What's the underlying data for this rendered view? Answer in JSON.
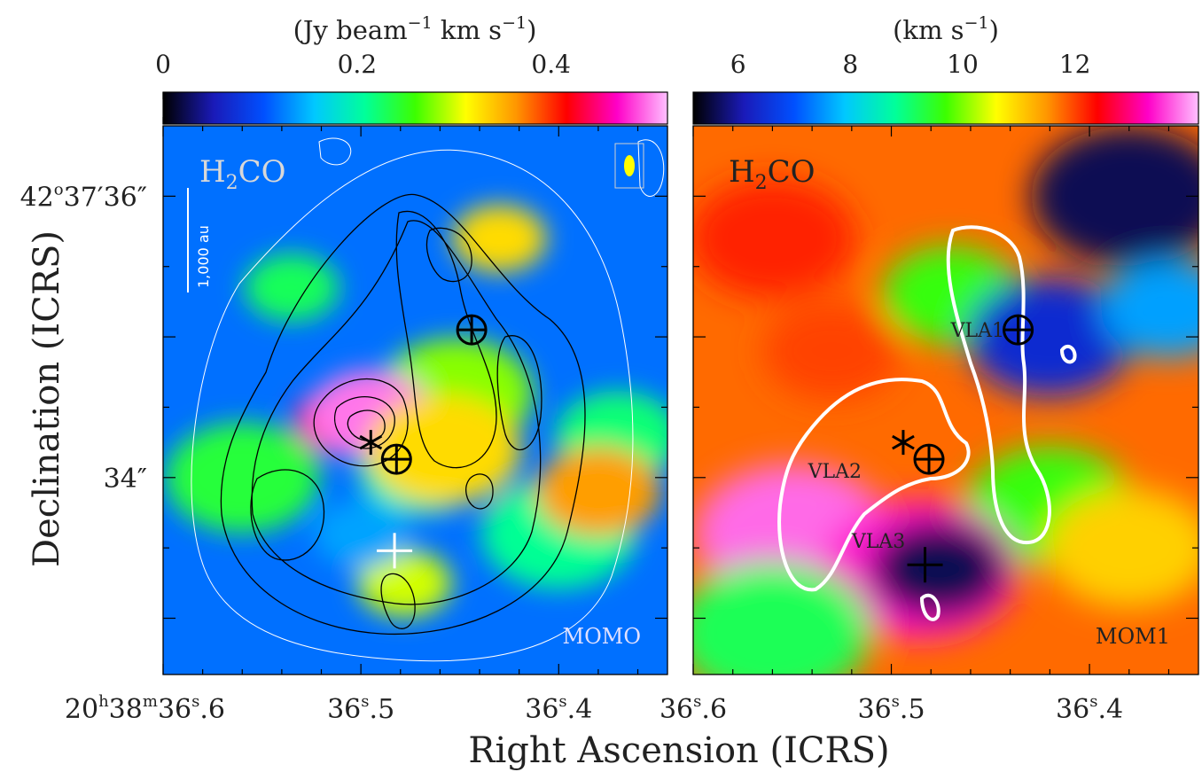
{
  "figure": {
    "xlabel": "Right Ascension (ICRS)",
    "ylabel": "Declination (ICRS)"
  },
  "chart_data": [
    {
      "type": "heatmap",
      "id": "mom0",
      "molecule": "H",
      "molecule_sub": "2",
      "molecule_tail": "CO",
      "corner_label": "MOMO",
      "colorbar": {
        "unit_parts": [
          "(Jy beam",
          "−1",
          " km s",
          "−1",
          ")"
        ],
        "ticks": [
          {
            "v": 0,
            "label": "0"
          },
          {
            "v": 0.2,
            "label": "0.2"
          },
          {
            "v": 0.4,
            "label": "0.4"
          }
        ],
        "range": [
          0,
          0.52
        ],
        "colormap": [
          "#000000",
          "#1a1ab8",
          "#0050ff",
          "#00c8ff",
          "#00ff9a",
          "#3cff00",
          "#ffff00",
          "#ff9600",
          "#ff0000",
          "#ff00c8",
          "#ffc0ff"
        ]
      },
      "scalebar_label": "1,000 au",
      "x_ticks": [
        {
          "ra": 36.6,
          "h": "20",
          "m": "38",
          "s": "36",
          "frac": "6"
        },
        {
          "ra": 36.5,
          "s": "36",
          "frac": "5"
        },
        {
          "ra": 36.4,
          "s": "36",
          "frac": "4"
        }
      ],
      "y_ticks": [
        {
          "dec": 36,
          "d": "42",
          "m": "37",
          "s": "36"
        },
        {
          "dec": 34,
          "s": "34"
        }
      ],
      "x_range": [
        36.6,
        36.345
      ],
      "y_range": [
        32.6,
        36.5
      ],
      "background_color": "#0070ff",
      "blobs": [
        {
          "ra": 36.535,
          "dec": 35.35,
          "value": 0.23
        },
        {
          "ra": 36.47,
          "dec": 34.05,
          "value": 0.2
        },
        {
          "ra": 36.452,
          "dec": 34.6,
          "value": 0.28
        },
        {
          "ra": 36.43,
          "dec": 35.7,
          "value": 0.33
        },
        {
          "ra": 36.37,
          "dec": 34.3,
          "value": 0.22
        },
        {
          "ra": 36.4,
          "dec": 33.6,
          "value": 0.21
        },
        {
          "ra": 36.51,
          "dec": 34.4,
          "value": 0.45
        },
        {
          "ra": 36.495,
          "dec": 34.45,
          "value": 0.5
        },
        {
          "ra": 36.56,
          "dec": 34.0,
          "value": 0.24
        },
        {
          "ra": 36.478,
          "dec": 33.25,
          "value": 0.3
        },
        {
          "ra": 36.38,
          "dec": 33.9,
          "value": 0.36
        },
        {
          "ra": 36.458,
          "dec": 34.2,
          "value": 0.33
        },
        {
          "ra": 36.5,
          "dec": 33.6,
          "value": 0.14
        }
      ],
      "markers": [
        {
          "kind": "circle-plus",
          "ra": 36.444,
          "dec": 35.05,
          "color": "#000000"
        },
        {
          "kind": "circle-plus",
          "ra": 36.482,
          "dec": 34.13,
          "color": "#000000"
        },
        {
          "kind": "star",
          "ra": 36.495,
          "dec": 34.25,
          "color": "#000000"
        },
        {
          "kind": "plus",
          "ra": 36.483,
          "dec": 33.48,
          "color": "#ffffff"
        }
      ]
    },
    {
      "type": "heatmap",
      "id": "mom1",
      "molecule": "H",
      "molecule_sub": "2",
      "molecule_tail": "CO",
      "corner_label": "MOM1",
      "colorbar": {
        "unit_parts": [
          "(km s",
          "−1",
          ")"
        ],
        "ticks": [
          {
            "v": 6,
            "label": "6"
          },
          {
            "v": 8,
            "label": "8"
          },
          {
            "v": 10,
            "label": "10"
          },
          {
            "v": 12,
            "label": "12"
          }
        ],
        "range": [
          5.2,
          14.2
        ],
        "colormap": [
          "#000000",
          "#1a1ab8",
          "#0050ff",
          "#00c8ff",
          "#00ff9a",
          "#3cff00",
          "#ffff00",
          "#ff9600",
          "#ff0000",
          "#ff00c8",
          "#ffc0ff"
        ]
      },
      "x_ticks": [
        {
          "ra": 36.6,
          "s": "36",
          "frac": "6"
        },
        {
          "ra": 36.5,
          "s": "36",
          "frac": "5"
        },
        {
          "ra": 36.4,
          "s": "36",
          "frac": "4"
        }
      ],
      "y_ticks": [
        {
          "dec": 36
        },
        {
          "dec": 34
        }
      ],
      "x_range": [
        36.6,
        36.345
      ],
      "y_range": [
        32.6,
        36.5
      ],
      "background_color": "#ff6a00",
      "blobs": [
        {
          "ra": 36.53,
          "dec": 34.9,
          "value": 12.0
        },
        {
          "ra": 36.56,
          "dec": 35.7,
          "value": 12.2
        },
        {
          "ra": 36.55,
          "dec": 33.6,
          "value": 13.8
        },
        {
          "ra": 36.47,
          "dec": 35.3,
          "value": 9.6
        },
        {
          "ra": 36.42,
          "dec": 35.0,
          "value": 6.4
        },
        {
          "ra": 36.38,
          "dec": 36.0,
          "value": 5.6
        },
        {
          "ra": 36.36,
          "dec": 35.2,
          "value": 7.6
        },
        {
          "ra": 36.42,
          "dec": 33.8,
          "value": 9.6
        },
        {
          "ra": 36.485,
          "dec": 33.35,
          "value": 13.4
        },
        {
          "ra": 36.476,
          "dec": 33.35,
          "value": 5.6
        },
        {
          "ra": 36.38,
          "dec": 33.5,
          "value": 11.0
        },
        {
          "ra": 36.56,
          "dec": 32.9,
          "value": 9.2
        }
      ],
      "labels": [
        {
          "text": "VLA1",
          "ra": 36.47,
          "dec": 35.05
        },
        {
          "text": "VLA2",
          "ra": 36.542,
          "dec": 34.05
        },
        {
          "text": "VLA3",
          "ra": 36.52,
          "dec": 33.55
        }
      ],
      "markers": [
        {
          "kind": "circle-plus",
          "ra": 36.436,
          "dec": 35.05,
          "color": "#000000"
        },
        {
          "kind": "circle-plus",
          "ra": 36.481,
          "dec": 34.13,
          "color": "#000000"
        },
        {
          "kind": "star",
          "ra": 36.494,
          "dec": 34.25,
          "color": "#000000"
        },
        {
          "kind": "plus",
          "ra": 36.483,
          "dec": 33.38,
          "color": "#000000"
        }
      ]
    }
  ]
}
